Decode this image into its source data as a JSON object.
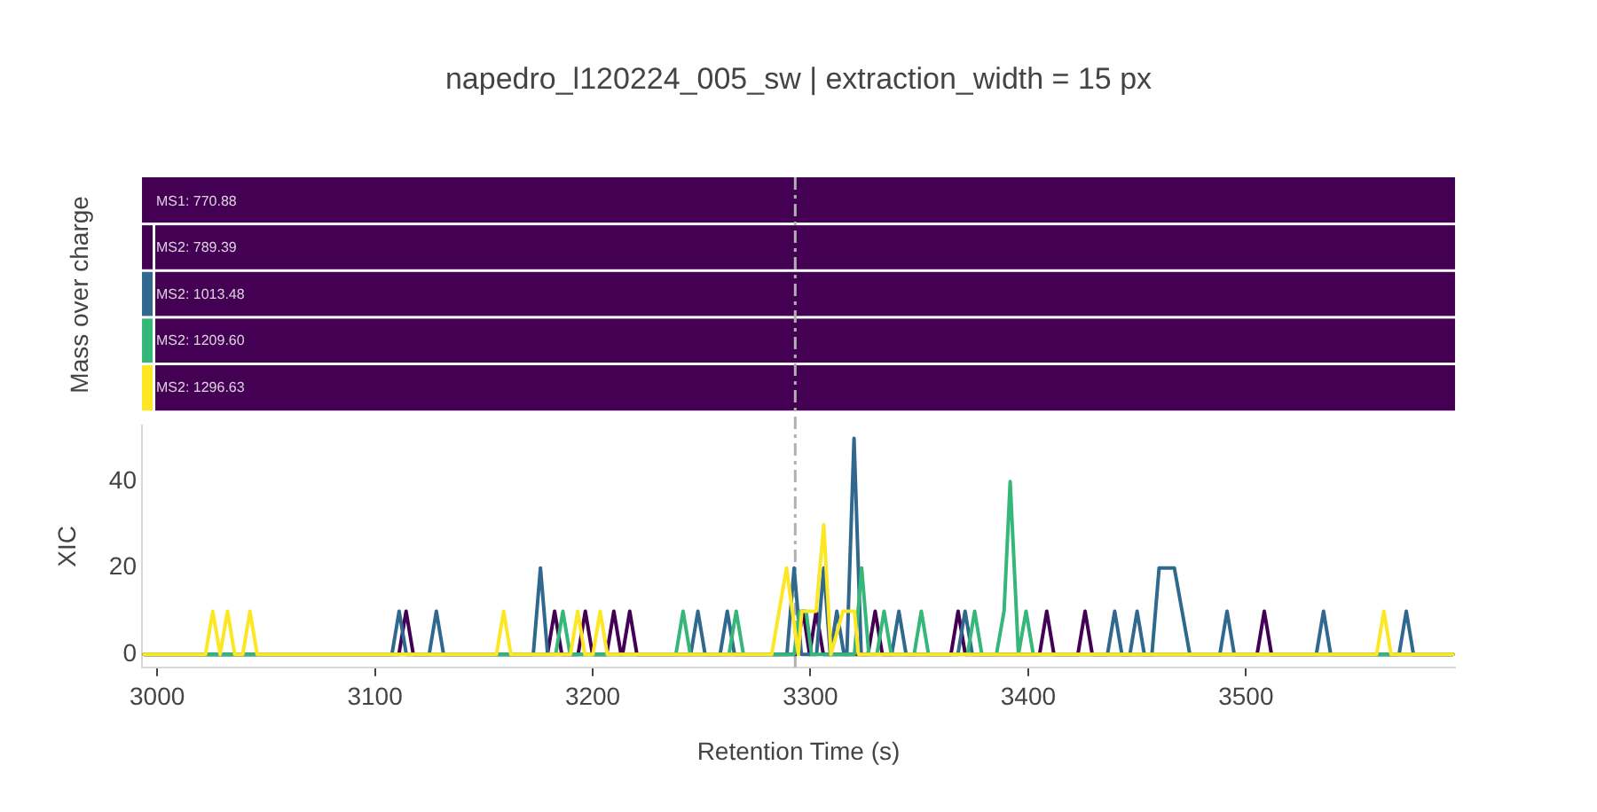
{
  "chart_data": [
    {
      "type": "other",
      "title": "napedro_l120224_005_sw | extraction_width = 15 px",
      "ylabel": "Mass over charge",
      "annotations": [
        "MS1: 770.88",
        "MS2: 789.39",
        "MS2: 1013.48",
        "MS2: 1209.60",
        "MS2: 1296.63"
      ]
    },
    {
      "type": "line",
      "xlabel": "Retention Time (s)",
      "ylabel": "XIC",
      "xlim": [
        2993,
        3596
      ],
      "xticks": [
        3000,
        3100,
        3200,
        3300,
        3400,
        3500
      ],
      "ylim": [
        -3,
        53
      ],
      "yticks": [
        0,
        20,
        40
      ],
      "ref_lines": [
        {
          "axis": "x",
          "value": 3293,
          "color": "#b0b0b0",
          "line_style": "dashed"
        }
      ],
      "series": [
        {
          "color": "#440154",
          "x": [
            2994,
            3111.0,
            3114.3,
            3117.6,
            3179.2,
            3182.5,
            3185.8,
            3193.3,
            3196.6,
            3199.9,
            3206.4,
            3209.7,
            3213.0,
            3213.7,
            3217.0,
            3220.3,
            3293.3,
            3296.6,
            3299.6,
            3302.6,
            3305.9,
            3326.4,
            3329.7,
            3333.0,
            3364.5,
            3367.8,
            3371.1,
            3405.2,
            3408.5,
            3411.8,
            3422.8,
            3426.1,
            3429.4,
            3505.1,
            3508.4,
            3511.7,
            3595
          ],
          "values": [
            0,
            0,
            10,
            0,
            0,
            10,
            0,
            0,
            10,
            0,
            0,
            10,
            0,
            0,
            10,
            0,
            0,
            10,
            0,
            10,
            0,
            0,
            10,
            0,
            0,
            10,
            0,
            0,
            10,
            0,
            0,
            10,
            0,
            0,
            10,
            0,
            0
          ]
        },
        {
          "color": "#31688e",
          "x": [
            2994,
            3107.8,
            3111.1,
            3114.4,
            3124.9,
            3128.2,
            3131.5,
            3172.7,
            3176.0,
            3179.3,
            3245.0,
            3248.3,
            3251.6,
            3258.5,
            3261.8,
            3265.1,
            3289.2,
            3292.5,
            3295.8,
            3302.8,
            3306.1,
            3309.1,
            3312.1,
            3315.4,
            3316.7,
            3320.0,
            3323.3,
            3337.3,
            3340.6,
            3343.9,
            3367.7,
            3371.0,
            3374.3,
            3436.4,
            3439.7,
            3443.0,
            3446.7,
            3450.0,
            3453.3,
            3456.8,
            3460.1,
            3467.1,
            3474.2,
            3488.0,
            3491.3,
            3494.6,
            3532.3,
            3535.6,
            3538.9,
            3570.3,
            3573.6,
            3576.9,
            3595
          ],
          "values": [
            0,
            0,
            10,
            0,
            0,
            10,
            0,
            0,
            20,
            0,
            0,
            10,
            0,
            0,
            10,
            0,
            0,
            20,
            0,
            0,
            20,
            0,
            10,
            0,
            0,
            50,
            0,
            0,
            10,
            0,
            0,
            10,
            0,
            0,
            10,
            0,
            0,
            10,
            0,
            0,
            20,
            20,
            0,
            0,
            10,
            0,
            0,
            10,
            0,
            0,
            10,
            0,
            0
          ]
        },
        {
          "color": "#35b779",
          "x": [
            2994,
            3183.0,
            3186.3,
            3189.6,
            3238.2,
            3241.5,
            3244.8,
            3262.6,
            3265.9,
            3269.2,
            3292.5,
            3295.0,
            3298.0,
            3300.5,
            3320.2,
            3323.5,
            3326.8,
            3330.5,
            3333.8,
            3337.1,
            3347.6,
            3350.9,
            3354.2,
            3372.1,
            3375.4,
            3378.7,
            3385.4,
            3388.9,
            3391.7,
            3395.5,
            3399.0,
            3402.3,
            3595
          ],
          "values": [
            0,
            0,
            10,
            0,
            0,
            10,
            0,
            0,
            10,
            0,
            0,
            10,
            10,
            0,
            0,
            20,
            0,
            0,
            10,
            0,
            0,
            10,
            0,
            0,
            10,
            0,
            0,
            10,
            40,
            0,
            10,
            0,
            0
          ]
        },
        {
          "color": "#fde725",
          "x": [
            2994,
            3022.2,
            3025.5,
            3028.9,
            3032.3,
            3035.6,
            3039.3,
            3042.6,
            3045.9,
            3155.8,
            3159.1,
            3162.4,
            3189.8,
            3193.1,
            3196.4,
            3200.1,
            3203.4,
            3206.7,
            3282.2,
            3289.0,
            3294.4,
            3296.0,
            3302.6,
            3306.1,
            3309.4,
            3314.9,
            3320.2,
            3322.0,
            3560.0,
            3563.3,
            3566.6,
            3595
          ],
          "values": [
            0,
            0,
            10,
            0,
            10,
            0,
            0,
            10,
            0,
            0,
            10,
            0,
            0,
            10,
            0,
            0,
            10,
            0,
            0,
            20,
            0,
            10,
            10,
            30,
            0,
            10,
            10,
            0,
            0,
            10,
            0,
            0
          ]
        }
      ]
    }
  ]
}
